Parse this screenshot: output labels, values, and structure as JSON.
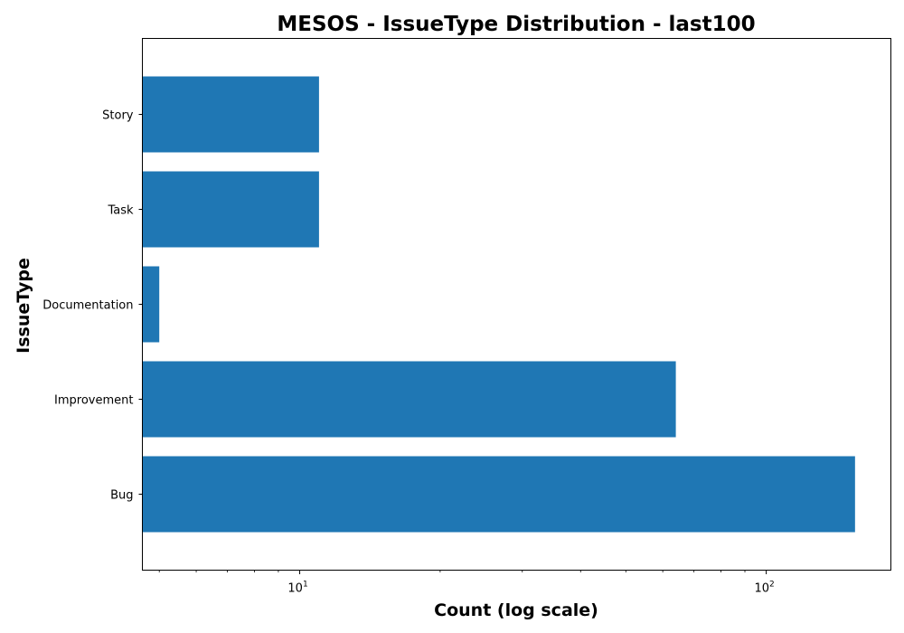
{
  "chart_data": {
    "type": "bar",
    "orientation": "horizontal",
    "title": "MESOS - IssueType Distribution - last100",
    "xlabel": "Count (log scale)",
    "ylabel": "IssueType",
    "x_scale": "log",
    "xlim": [
      4.6,
      185
    ],
    "x_ticks": [
      {
        "value": 10,
        "base": "10",
        "exp": "1"
      },
      {
        "value": 100,
        "base": "10",
        "exp": "2"
      }
    ],
    "categories": [
      "Bug",
      "Improvement",
      "Documentation",
      "Task",
      "Story"
    ],
    "values": [
      155,
      64,
      5,
      11,
      11
    ],
    "bar_color": "#1f77b4",
    "grid": false
  }
}
